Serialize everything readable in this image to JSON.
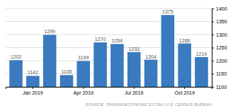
{
  "chart_data": {
    "type": "bar",
    "categories": [
      null,
      "Jan 2019",
      null,
      null,
      "Apr 2019",
      null,
      null,
      "Jul 2019",
      null,
      null,
      "Oct 2019",
      null
    ],
    "values": [
      1202,
      1142,
      1299,
      1145,
      1199,
      1270,
      1264,
      1233,
      1204,
      1375,
      1266,
      1214
    ],
    "color": "#3a7abf",
    "ylim": [
      1100,
      1400
    ],
    "yticks": [
      1100,
      1150,
      1200,
      1250,
      1300,
      1350,
      1400
    ],
    "grid": true,
    "data_labels": true,
    "annotations": [
      "SOURCE: TRADINGECONOMICS.COM | U.S. CENSUS BUREAU"
    ]
  }
}
